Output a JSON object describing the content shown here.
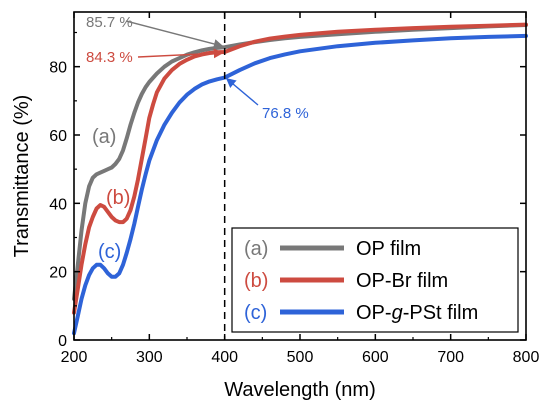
{
  "chart_data": {
    "type": "line",
    "xlabel": "Wavelength (nm)",
    "ylabel": "Transmittance (%)",
    "xlim": [
      200,
      800
    ],
    "ylim": [
      0,
      96
    ],
    "xticks": [
      200,
      300,
      400,
      500,
      600,
      700,
      800
    ],
    "yticks": [
      0,
      20,
      40,
      60,
      80
    ],
    "grid": false,
    "legend_position": "bottom-right",
    "reference_line": {
      "x": 400,
      "style": "dashed"
    },
    "series": [
      {
        "tag": "(a)",
        "name": "OP film",
        "color": "#787878",
        "x": [
          200,
          205,
          210,
          215,
          220,
          225,
          230,
          235,
          240,
          245,
          250,
          255,
          260,
          265,
          270,
          275,
          280,
          285,
          290,
          295,
          300,
          310,
          320,
          330,
          340,
          350,
          360,
          370,
          380,
          390,
          400,
          420,
          440,
          460,
          480,
          500,
          550,
          600,
          650,
          700,
          750,
          800
        ],
        "y": [
          12,
          22,
          32,
          40,
          45,
          47.5,
          48.5,
          49,
          49.5,
          50,
          50.5,
          51.5,
          53,
          55.5,
          59,
          63,
          66.5,
          69.5,
          72,
          74,
          75.5,
          78,
          80,
          81.5,
          82.5,
          83.5,
          84.2,
          84.8,
          85.2,
          85.5,
          85.7,
          86.5,
          87.2,
          87.8,
          88.3,
          88.7,
          89.5,
          90.2,
          90.8,
          91.3,
          91.8,
          92.2
        ]
      },
      {
        "tag": "(b)",
        "name": "OP-Br film",
        "color": "#cd4b40",
        "x": [
          200,
          205,
          210,
          215,
          220,
          225,
          230,
          235,
          240,
          245,
          250,
          255,
          260,
          265,
          270,
          275,
          280,
          285,
          290,
          295,
          300,
          305,
          310,
          320,
          330,
          340,
          350,
          360,
          370,
          380,
          390,
          400,
          420,
          440,
          460,
          480,
          500,
          550,
          600,
          650,
          700,
          750,
          800
        ],
        "y": [
          8,
          15,
          22,
          28,
          33,
          36,
          38.5,
          39.5,
          39,
          37.5,
          36,
          35,
          34.5,
          34.5,
          35.5,
          38,
          42,
          47,
          53,
          59,
          65,
          69,
          72.5,
          76.5,
          79,
          80.8,
          82,
          83,
          83.6,
          84,
          84.2,
          84.3,
          86,
          87.3,
          88.2,
          88.8,
          89.3,
          90.2,
          90.8,
          91.3,
          91.7,
          92,
          92.3
        ]
      },
      {
        "tag": "(c)",
        "name": "OP-g-PSt film",
        "color": "#2e63d8",
        "x": [
          200,
          205,
          210,
          215,
          220,
          225,
          230,
          235,
          240,
          245,
          250,
          255,
          260,
          265,
          270,
          275,
          280,
          285,
          290,
          295,
          300,
          310,
          320,
          330,
          340,
          350,
          360,
          370,
          380,
          390,
          400,
          420,
          440,
          460,
          480,
          500,
          550,
          600,
          650,
          700,
          750,
          800
        ],
        "y": [
          2,
          7,
          12,
          16,
          19,
          21,
          22,
          22,
          21,
          19.5,
          18.5,
          18.5,
          19.5,
          22,
          25.5,
          29.5,
          34,
          39,
          44,
          48.5,
          52.5,
          58.5,
          63,
          66.5,
          69.5,
          71.8,
          73.5,
          74.8,
          75.7,
          76.3,
          76.8,
          79,
          81,
          82.5,
          83.6,
          84.5,
          86,
          87,
          87.7,
          88.3,
          88.7,
          89
        ]
      }
    ],
    "annotations": [
      {
        "name": "annotation-a",
        "text": "85.7 %",
        "color": "#787878",
        "at": [
          400,
          85.7
        ]
      },
      {
        "name": "annotation-b",
        "text": "84.3 %",
        "color": "#cd4b40",
        "at": [
          400,
          84.3
        ]
      },
      {
        "name": "annotation-c",
        "text": "76.8 %",
        "color": "#2e63d8",
        "at": [
          400,
          76.8
        ]
      }
    ],
    "curve_labels": [
      {
        "text": "(a)",
        "color": "#787878"
      },
      {
        "text": "(b)",
        "color": "#cd4b40"
      },
      {
        "text": "(c)",
        "color": "#2e63d8"
      }
    ]
  }
}
